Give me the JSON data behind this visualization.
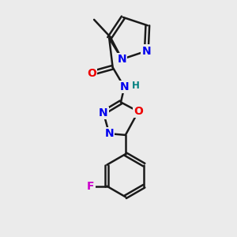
{
  "background_color": "#ebebeb",
  "bond_color": "#1a1a1a",
  "bond_width": 1.8,
  "atom_colors": {
    "N": "#0000ee",
    "O": "#ee0000",
    "F": "#cc00cc",
    "C": "#1a1a1a",
    "H": "#008080"
  },
  "font_size": 10,
  "fig_size": [
    3.0,
    3.0
  ],
  "dpi": 100
}
